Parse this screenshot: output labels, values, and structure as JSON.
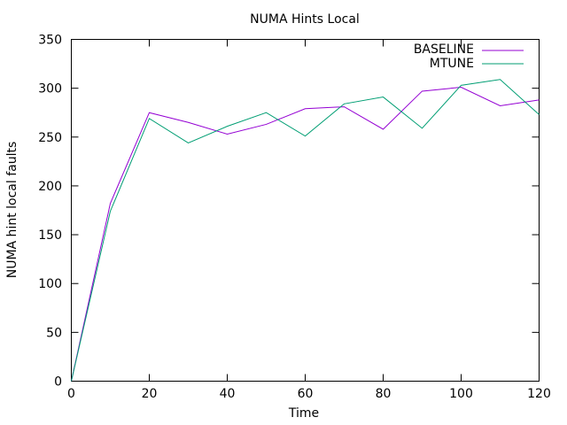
{
  "chart_data": {
    "type": "line",
    "title": "NUMA Hints Local",
    "xlabel": "Time",
    "ylabel": "NUMA hint local faults",
    "xlim": [
      0,
      120
    ],
    "ylim": [
      0,
      350
    ],
    "x_ticks": [
      0,
      20,
      40,
      60,
      80,
      100,
      120
    ],
    "y_ticks": [
      0,
      50,
      100,
      150,
      200,
      250,
      300,
      350
    ],
    "grid": false,
    "legend_position": "top-right",
    "series": [
      {
        "name": "BASELINE",
        "color": "#9400d3",
        "x": [
          0,
          10,
          20,
          30,
          40,
          50,
          60,
          70,
          80,
          90,
          100,
          110,
          120
        ],
        "y": [
          0,
          182,
          275,
          265,
          253,
          263,
          279,
          281,
          258,
          297,
          301,
          282,
          288
        ]
      },
      {
        "name": "MTUNE",
        "color": "#009e73",
        "x": [
          0,
          10,
          20,
          30,
          40,
          50,
          60,
          70,
          80,
          90,
          100,
          110,
          120
        ],
        "y": [
          0,
          174,
          269,
          244,
          261,
          275,
          251,
          284,
          291,
          259,
          303,
          309,
          273
        ]
      }
    ]
  }
}
